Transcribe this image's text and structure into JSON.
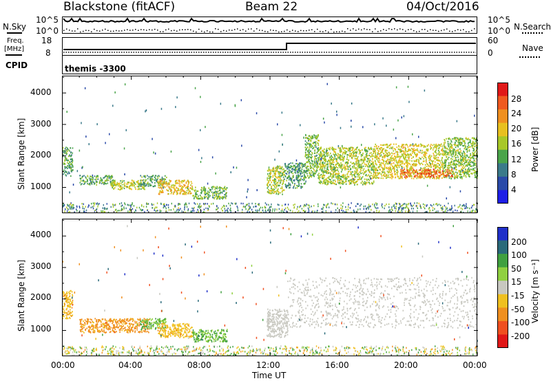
{
  "header": {
    "station": "Blackstone (fitACF)",
    "beam": "Beam 22",
    "date": "04/Oct/2016"
  },
  "noise_panel": {
    "left_label": "N.Sky",
    "right_label": "N.Search",
    "tick_top": "10^5",
    "tick_bottom": "10^0"
  },
  "freq_panel": {
    "left_label_1": "Freq.",
    "left_label_2": "[MHz]",
    "left_ticks": [
      "18",
      "8"
    ],
    "right_label": "Nave",
    "right_ticks": [
      "60",
      "0"
    ],
    "cpid_label": "CPID",
    "cpid_value": "themis -3300"
  },
  "axes": {
    "ylabel": "Slant Range [km]",
    "xlabel": "Time UT",
    "xticks": [
      "00:00",
      "04:00",
      "08:00",
      "12:00",
      "16:00",
      "20:00",
      "00:00"
    ],
    "yticks": [
      "1000",
      "2000",
      "3000",
      "4000"
    ]
  },
  "colorbars": {
    "power": {
      "label": "Power [dB]",
      "ticks": [
        "4",
        "8",
        "12",
        "16",
        "20",
        "24",
        "28"
      ],
      "colors": [
        "#1e1ee6",
        "#2a4aa8",
        "#3a7a8a",
        "#4aa44a",
        "#a8c828",
        "#e8c020",
        "#f09020",
        "#f05a20",
        "#e01818"
      ]
    },
    "velocity": {
      "label": "Velocity [m s⁻¹]",
      "ticks": [
        "200",
        "100",
        "50",
        "15",
        "-15",
        "-50",
        "-100",
        "-200"
      ],
      "colors": [
        "#2030c8",
        "#2a6a7a",
        "#40a040",
        "#90d040",
        "#c8c8c0",
        "#f0c020",
        "#f09020",
        "#f05020",
        "#e01818"
      ]
    }
  },
  "chart_data": [
    {
      "type": "heatmap",
      "name": "power",
      "xrange_hours": [
        0,
        24
      ],
      "yrange_km": [
        180,
        4550
      ],
      "regions": [
        {
          "t0": 0.0,
          "t1": 0.6,
          "r0": 1380,
          "r1": 2300,
          "p": 12
        },
        {
          "t0": 1.0,
          "t1": 3.0,
          "r0": 1100,
          "r1": 1400,
          "p": 13
        },
        {
          "t0": 2.8,
          "t1": 4.8,
          "r0": 950,
          "r1": 1250,
          "p": 17
        },
        {
          "t0": 4.5,
          "t1": 6.0,
          "r0": 1050,
          "r1": 1400,
          "p": 12
        },
        {
          "t0": 5.5,
          "t1": 7.5,
          "r0": 800,
          "r1": 1250,
          "p": 20
        },
        {
          "t0": 7.5,
          "t1": 9.5,
          "r0": 650,
          "r1": 1050,
          "p": 14
        },
        {
          "t0": 11.8,
          "t1": 12.8,
          "r0": 800,
          "r1": 1700,
          "p": 16
        },
        {
          "t0": 12.8,
          "t1": 14.0,
          "r0": 1000,
          "r1": 1800,
          "p": 11
        },
        {
          "t0": 14.0,
          "t1": 14.8,
          "r0": 1300,
          "r1": 2700,
          "p": 14
        },
        {
          "t0": 14.8,
          "t1": 18.0,
          "r0": 1100,
          "r1": 2300,
          "p": 16
        },
        {
          "t0": 18.0,
          "t1": 22.0,
          "r0": 1300,
          "r1": 2400,
          "p": 18
        },
        {
          "t0": 22.0,
          "t1": 24.0,
          "r0": 1300,
          "r1": 2600,
          "p": 15
        },
        {
          "t0": 19.5,
          "t1": 22.5,
          "r0": 1350,
          "r1": 1600,
          "p": 26
        }
      ]
    },
    {
      "type": "heatmap",
      "name": "velocity",
      "xrange_hours": [
        0,
        24
      ],
      "yrange_km": [
        180,
        4550
      ],
      "regions": [
        {
          "t0": 0.0,
          "t1": 0.6,
          "r0": 1400,
          "r1": 2300,
          "v": -40
        },
        {
          "t0": 1.0,
          "t1": 5.0,
          "r0": 950,
          "r1": 1400,
          "v": -60
        },
        {
          "t0": 4.5,
          "t1": 6.0,
          "r0": 1050,
          "r1": 1400,
          "v": 30
        },
        {
          "t0": 5.5,
          "t1": 7.5,
          "r0": 800,
          "r1": 1250,
          "v": -40
        },
        {
          "t0": 7.5,
          "t1": 9.5,
          "r0": 650,
          "r1": 1050,
          "v": 30
        },
        {
          "t0": 11.8,
          "t1": 13.0,
          "r0": 800,
          "r1": 1700,
          "v": 0
        },
        {
          "t0": 13.0,
          "t1": 24.0,
          "r0": 1100,
          "r1": 2700,
          "v": 0
        }
      ]
    }
  ]
}
